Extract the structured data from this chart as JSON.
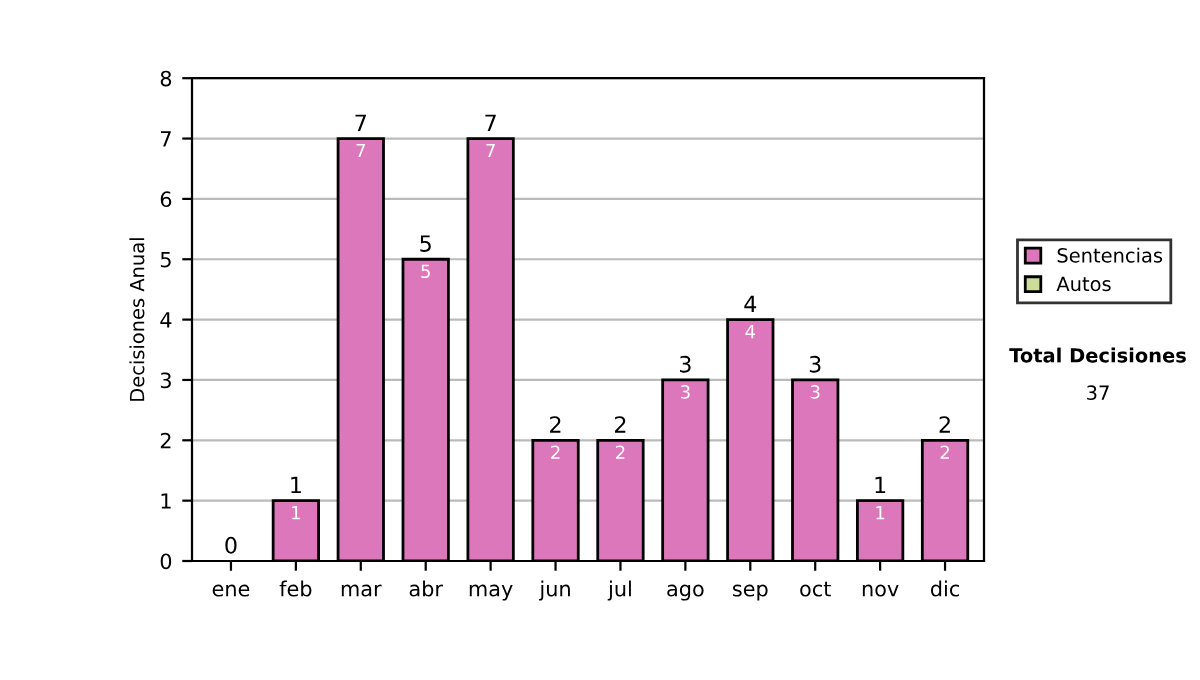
{
  "chart_data": {
    "type": "bar",
    "stacked": true,
    "ylabel": "Decisiones Anual",
    "categories": [
      "ene",
      "feb",
      "mar",
      "abr",
      "may",
      "jun",
      "jul",
      "ago",
      "sep",
      "oct",
      "nov",
      "dic"
    ],
    "series": [
      {
        "name": "Sentencias",
        "color": "#dd77bb",
        "values": [
          0,
          1,
          7,
          5,
          7,
          2,
          2,
          3,
          4,
          3,
          1,
          2
        ],
        "value_labels": [
          null,
          "1",
          "7",
          "5",
          "7",
          "2",
          "2",
          "3",
          "4",
          "3",
          "1",
          "2"
        ]
      },
      {
        "name": "Autos",
        "color": "#ccdd99",
        "values": [
          null,
          null,
          null,
          null,
          null,
          null,
          null,
          null,
          null,
          null,
          null,
          null
        ]
      }
    ],
    "totals": [
      "0",
      "1",
      "7",
      "5",
      "7",
      "2",
      "2",
      "3",
      "4",
      "3",
      "1",
      "2"
    ],
    "ylim": [
      0,
      8
    ],
    "yticks": [
      0,
      1,
      2,
      3,
      4,
      5,
      6,
      7,
      8
    ],
    "grid": "y",
    "legend": "right",
    "annotations": [
      "Total Decisiones",
      "37"
    ]
  }
}
